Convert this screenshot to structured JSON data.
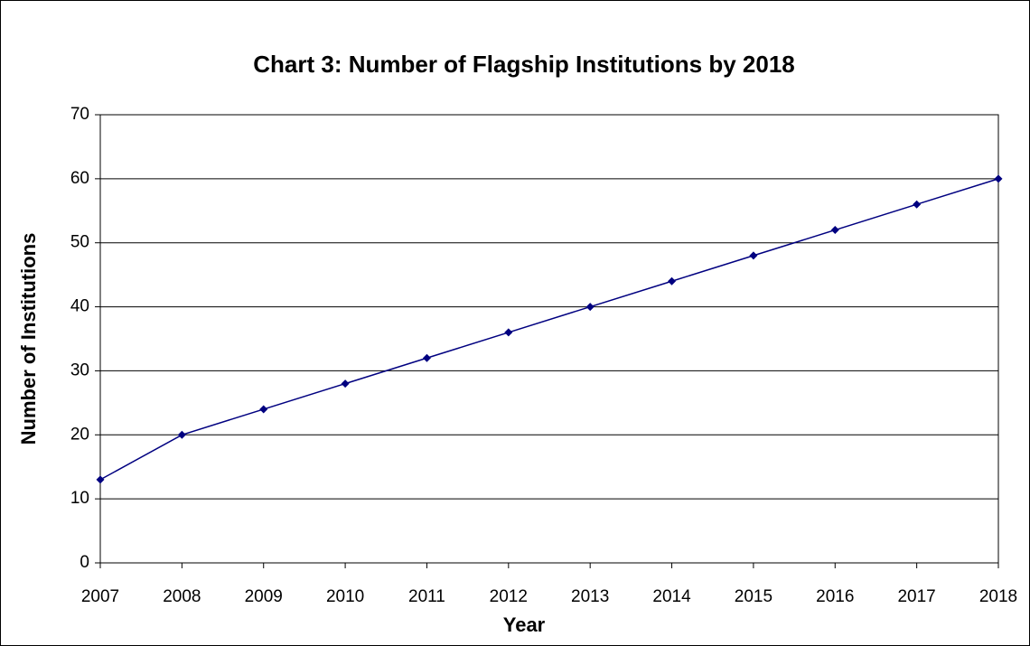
{
  "chart_data": {
    "type": "line",
    "title": "Chart 3: Number of Flagship Institutions by 2018",
    "x_label": "Year",
    "y_label": "Number of Institutions",
    "categories": [
      "2007",
      "2008",
      "2009",
      "2010",
      "2011",
      "2012",
      "2013",
      "2014",
      "2015",
      "2016",
      "2017",
      "2018"
    ],
    "series": [
      {
        "name": "Flagship Institutions",
        "color": "#000080",
        "values": [
          13,
          20,
          24,
          28,
          32,
          36,
          40,
          44,
          48,
          52,
          56,
          60
        ]
      }
    ],
    "ylim": [
      0,
      70
    ],
    "yticks": [
      0,
      10,
      20,
      30,
      40,
      50,
      60,
      70
    ],
    "grid": true
  }
}
